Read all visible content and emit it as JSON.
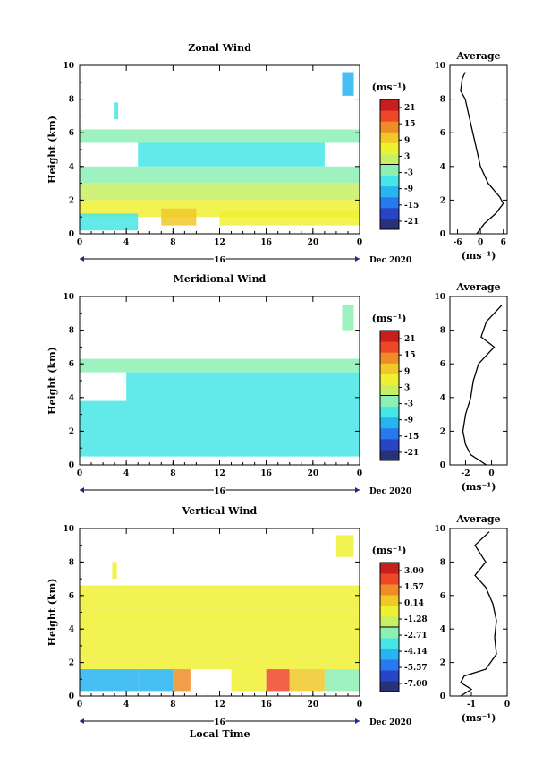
{
  "colorscale": [
    "#283278",
    "#2845c8",
    "#2878f0",
    "#28b4f0",
    "#46e6e6",
    "#8cf0b4",
    "#c8f064",
    "#f0f032",
    "#f0c828",
    "#f08c28",
    "#f04628",
    "#c81e1e"
  ],
  "charts": [
    {
      "title": "Zonal Wind",
      "ylabel": "Height (km)",
      "xticks": [
        "0",
        "4",
        "8",
        "12",
        "16",
        "20",
        "0"
      ],
      "yticks": [
        "0",
        "2",
        "4",
        "6",
        "8",
        "10"
      ],
      "day": "16",
      "month": "Dec 2020",
      "unit": "(ms⁻¹)",
      "cbticks": [
        "21",
        "15",
        "9",
        "3",
        "-3",
        "-9",
        "-15",
        "-21"
      ],
      "avg_title": "Average",
      "avg_xticks": [
        "-6",
        "0",
        "6"
      ],
      "avg_unit": "(ms⁻¹)"
    },
    {
      "title": "Meridional Wind",
      "ylabel": "Height (km)",
      "xticks": [
        "0",
        "4",
        "8",
        "12",
        "16",
        "20",
        "0"
      ],
      "yticks": [
        "0",
        "2",
        "4",
        "6",
        "8",
        "10"
      ],
      "day": "16",
      "month": "Dec 2020",
      "unit": "(ms⁻¹)",
      "cbticks": [
        "21",
        "15",
        "9",
        "3",
        "-3",
        "-9",
        "-15",
        "-21"
      ],
      "avg_title": "Average",
      "avg_xticks": [
        "-2",
        "0"
      ],
      "avg_unit": "(ms⁻¹)"
    },
    {
      "title": "Vertical Wind",
      "ylabel": "Height (km)",
      "xlabel": "Local Time",
      "xticks": [
        "0",
        "4",
        "8",
        "12",
        "16",
        "20",
        "0"
      ],
      "yticks": [
        "0",
        "2",
        "4",
        "6",
        "8",
        "10"
      ],
      "day": "16",
      "month": "Dec 2020",
      "unit": "(ms⁻¹)",
      "cbticks": [
        "3.00",
        "1.57",
        "0.14",
        "-1.28",
        "-2.71",
        "-4.14",
        "-5.57",
        "-7.00"
      ],
      "avg_title": "Average",
      "avg_xticks": [
        "-1",
        "0"
      ],
      "avg_unit": "(ms⁻¹)"
    }
  ],
  "chart_data": [
    {
      "type": "heatmap",
      "title": "Zonal Wind",
      "ylabel": "Height (km)",
      "x_range": [
        0,
        24
      ],
      "ylim": [
        0,
        10
      ],
      "colorbar_range": [
        -24,
        24
      ],
      "blocks": [
        {
          "x": [
            0,
            24
          ],
          "y": [
            5.4,
            6.2
          ],
          "v": -4
        },
        {
          "x": [
            5,
            21
          ],
          "y": [
            4.0,
            5.4
          ],
          "v": -5
        },
        {
          "x": [
            0,
            24
          ],
          "y": [
            3.0,
            4.0
          ],
          "v": -3
        },
        {
          "x": [
            0,
            24
          ],
          "y": [
            2.0,
            3.0
          ],
          "v": 3
        },
        {
          "x": [
            0,
            24
          ],
          "y": [
            1.0,
            2.0
          ],
          "v": 4
        },
        {
          "x": [
            0,
            5
          ],
          "y": [
            0.2,
            1.2
          ],
          "v": -8
        },
        {
          "x": [
            7,
            10
          ],
          "y": [
            0.5,
            1.5
          ],
          "v": 9
        },
        {
          "x": [
            12,
            24
          ],
          "y": [
            0.5,
            1.4
          ],
          "v": 5
        },
        {
          "x": [
            22.5,
            23.5
          ],
          "y": [
            8.2,
            9.6
          ],
          "v": -12
        },
        {
          "x": [
            3,
            3.3
          ],
          "y": [
            6.8,
            7.8
          ],
          "v": -8
        }
      ],
      "average": {
        "xlim": [
          -8,
          7
        ],
        "x": [
          -4,
          -4.8,
          -5,
          -5.2,
          -4,
          -3,
          -2,
          -1,
          0,
          2,
          5,
          6,
          4,
          1,
          -1
        ],
        "y": [
          9.6,
          9.2,
          8.8,
          8.5,
          8.0,
          7.0,
          6.0,
          5.0,
          4.0,
          3.0,
          2.2,
          1.8,
          1.2,
          0.6,
          0.0
        ]
      }
    },
    {
      "type": "heatmap",
      "title": "Meridional Wind",
      "ylabel": "Height (km)",
      "x_range": [
        0,
        24
      ],
      "ylim": [
        0,
        10
      ],
      "colorbar_range": [
        -24,
        24
      ],
      "blocks": [
        {
          "x": [
            0,
            24
          ],
          "y": [
            5.5,
            6.3
          ],
          "v": -4
        },
        {
          "x": [
            4,
            24
          ],
          "y": [
            3.8,
            5.5
          ],
          "v": -5
        },
        {
          "x": [
            0,
            24
          ],
          "y": [
            2.5,
            3.8
          ],
          "v": -6
        },
        {
          "x": [
            0,
            24
          ],
          "y": [
            0.5,
            2.5
          ],
          "v": -6
        },
        {
          "x": [
            22.5,
            23.5
          ],
          "y": [
            8.0,
            9.5
          ],
          "v": -3
        }
      ],
      "average": {
        "xlim": [
          -3.2,
          1.2
        ],
        "x": [
          0.8,
          -0.4,
          -0.8,
          0.2,
          -1.0,
          -1.4,
          -1.5,
          -1.6,
          -2.0,
          -2.2,
          -2.0,
          -1.6,
          -0.4
        ],
        "y": [
          9.5,
          8.5,
          7.6,
          7.0,
          6.0,
          5.0,
          4.5,
          4.0,
          3.0,
          2.0,
          1.2,
          0.6,
          0.0
        ]
      }
    },
    {
      "type": "heatmap",
      "title": "Vertical Wind",
      "ylabel": "Height (km)",
      "xlabel": "Local Time",
      "x_range": [
        0,
        24
      ],
      "ylim": [
        0,
        10
      ],
      "colorbar_range": [
        -7.0,
        3.0
      ],
      "blocks": [
        {
          "x": [
            0,
            24
          ],
          "y": [
            5.2,
            6.6
          ],
          "v": -0.6
        },
        {
          "x": [
            0,
            24
          ],
          "y": [
            3.5,
            5.2
          ],
          "v": -0.8
        },
        {
          "x": [
            0,
            24
          ],
          "y": [
            2.2,
            3.5
          ],
          "v": -0.7
        },
        {
          "x": [
            0,
            24
          ],
          "y": [
            1.6,
            2.2
          ],
          "v": -0.9
        },
        {
          "x": [
            0,
            5
          ],
          "y": [
            0.3,
            1.6
          ],
          "v": -4.5
        },
        {
          "x": [
            5,
            8
          ],
          "y": [
            0.3,
            1.6
          ],
          "v": -4.0
        },
        {
          "x": [
            8,
            9.5
          ],
          "y": [
            0.3,
            1.6
          ],
          "v": 1.2
        },
        {
          "x": [
            13,
            16
          ],
          "y": [
            0.3,
            1.6
          ],
          "v": -0.5
        },
        {
          "x": [
            16,
            18
          ],
          "y": [
            0.3,
            1.6
          ],
          "v": 1.8
        },
        {
          "x": [
            18,
            21
          ],
          "y": [
            0.3,
            1.6
          ],
          "v": 0.2
        },
        {
          "x": [
            21,
            24
          ],
          "y": [
            0.3,
            1.6
          ],
          "v": -2.6
        },
        {
          "x": [
            2.8,
            3.2
          ],
          "y": [
            7.0,
            8.0
          ],
          "v": -1.0
        },
        {
          "x": [
            22,
            23.5
          ],
          "y": [
            8.3,
            9.6
          ],
          "v": -1.0
        }
      ],
      "average": {
        "xlim": [
          -1.6,
          0
        ],
        "x": [
          -0.5,
          -0.9,
          -0.6,
          -0.9,
          -0.6,
          -0.4,
          -0.3,
          -0.35,
          -0.3,
          -0.6,
          -1.2,
          -1.3,
          -1.0,
          -1.3
        ],
        "y": [
          9.8,
          9.0,
          8.0,
          7.2,
          6.5,
          5.5,
          4.5,
          3.5,
          2.5,
          1.6,
          1.2,
          0.8,
          0.4,
          0.0
        ]
      }
    }
  ]
}
